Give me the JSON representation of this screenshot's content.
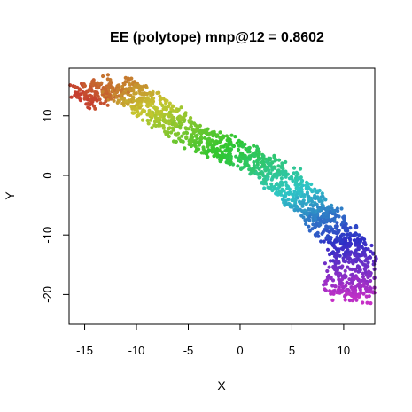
{
  "chart_data": {
    "type": "scatter",
    "title": "EE (polytope) mnp@12 = 0.8602",
    "xlabel": "X",
    "ylabel": "Y",
    "xlim": [
      -16.5,
      13
    ],
    "ylim": [
      -25,
      18
    ],
    "x_ticks": [
      -15,
      -10,
      -5,
      0,
      5,
      10
    ],
    "x_tick_labels": [
      "-15",
      "-10",
      "-5",
      "0",
      "5",
      "10"
    ],
    "y_ticks": [
      -20,
      -10,
      0,
      10
    ],
    "y_tick_labels": [
      "-20",
      "-10",
      "0",
      "10"
    ],
    "grid": false,
    "legend": "none",
    "color_scale": "rainbow (red to magenta) along the curve",
    "curve_skeleton": [
      {
        "x": -15.5,
        "y": 12.8
      },
      {
        "x": -12.0,
        "y": 15.0
      },
      {
        "x": -9.0,
        "y": 12.0
      },
      {
        "x": -6.0,
        "y": 8.0
      },
      {
        "x": -3.0,
        "y": 5.5
      },
      {
        "x": 0.0,
        "y": 3.5
      },
      {
        "x": 3.0,
        "y": 1.0
      },
      {
        "x": 5.5,
        "y": -3.0
      },
      {
        "x": 8.0,
        "y": -7.0
      },
      {
        "x": 10.0,
        "y": -10.0
      },
      {
        "x": 11.0,
        "y": -15.0
      },
      {
        "x": 10.5,
        "y": -21.0
      }
    ],
    "band_half_width": 1.8,
    "n_points": 1600
  }
}
